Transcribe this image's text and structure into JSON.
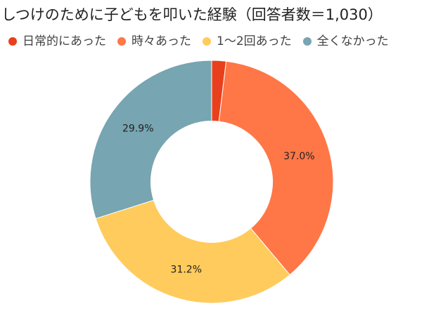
{
  "chart_data": {
    "type": "pie",
    "title": "しつけのために子どもを叩いた経験（回答者数＝1,030）",
    "hole": 0.5,
    "legend_position": "top",
    "slices": [
      {
        "label": "日常的にあった",
        "value": 1.9,
        "data_label": "",
        "color": "#e8401c"
      },
      {
        "label": "時々あった",
        "value": 37.0,
        "data_label": "37.0%",
        "color": "#ff7747"
      },
      {
        "label": "1〜2回あった",
        "value": 31.2,
        "data_label": "31.2%",
        "color": "#ffcb5c"
      },
      {
        "label": "全くなかった",
        "value": 29.9,
        "data_label": "29.9%",
        "color": "#77a5b1"
      }
    ]
  }
}
